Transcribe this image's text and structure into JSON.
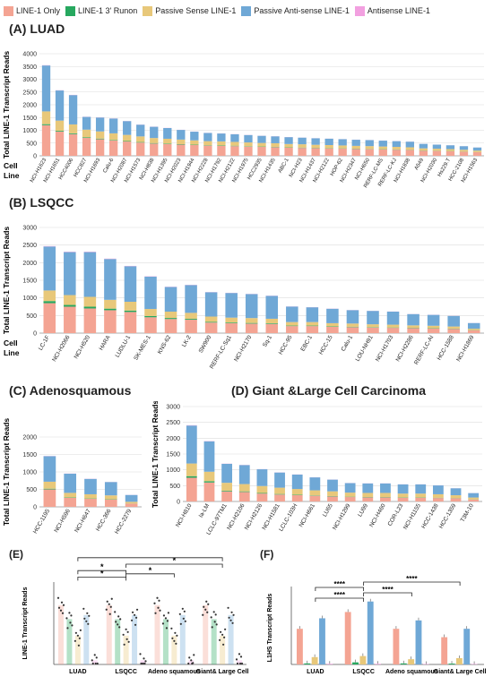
{
  "legend": [
    {
      "label": "LINE-1 Only",
      "color": "#f4a493"
    },
    {
      "label": "LINE-1 3' Runon",
      "color": "#27a85f"
    },
    {
      "label": "Passive Sense LINE-1",
      "color": "#e8c87a"
    },
    {
      "label": "Passive Anti-sense LINE-1",
      "color": "#6fa8d6"
    },
    {
      "label": "Antisense LINE-1",
      "color": "#f2a0e0"
    }
  ],
  "panels": {
    "a": {
      "title": "(A) LUAD"
    },
    "b": {
      "title": "(B) LSQCC"
    },
    "c": {
      "title": "(C) Adenosquamous"
    },
    "d": {
      "title": "(D) Giant &Large Cell Carcinoma"
    },
    "e": {
      "label": "(E)"
    },
    "f": {
      "label": "(F)"
    }
  },
  "axis": {
    "ylabel": "Total LINE-1 Transcript Reads",
    "cell": "Cell",
    "line": "Line"
  },
  "chart_data": [
    {
      "id": "A",
      "type": "bar",
      "stacked": true,
      "ylim": [
        0,
        4000
      ],
      "yticks": [
        0,
        500,
        1000,
        1500,
        2000,
        2500,
        3000,
        3500,
        4000
      ],
      "categories": [
        "NCI-H1623",
        "NCI-H1651",
        "HCC4006",
        "HCC827",
        "NCI-H1693",
        "Calu-6",
        "NCI-H2087",
        "NCI-H1573",
        "NCI-H838",
        "NCI-H1395",
        "NCI-H2023",
        "NCI-H1944",
        "NCI-H2228",
        "NCI-H1792",
        "NCI-H2122",
        "NCI-H1975",
        "HCC2935",
        "NCI-H1435",
        "ABC-1",
        "NCI-H23",
        "NCI-H1437",
        "NCI-H2122",
        "HOP-62",
        "NCI-H2347",
        "NCI-H650",
        "RERF-LC-MS",
        "RERF-LC-KJ",
        "NCI-H1838",
        "A549",
        "NCI-H2030",
        "Hs229.T",
        "HCC-2108",
        "NCI-H1563"
      ],
      "series": [
        {
          "name": "LINE-1 Only",
          "values": [
            1200,
            950,
            850,
            700,
            650,
            600,
            560,
            520,
            480,
            460,
            440,
            420,
            400,
            390,
            380,
            360,
            350,
            340,
            320,
            310,
            300,
            290,
            280,
            270,
            260,
            250,
            240,
            230,
            200,
            190,
            180,
            160,
            140
          ]
        },
        {
          "name": "LINE-1 3' Runon",
          "values": [
            40,
            30,
            30,
            25,
            25,
            20,
            20,
            20,
            18,
            18,
            16,
            16,
            15,
            15,
            15,
            14,
            14,
            13,
            12,
            12,
            12,
            11,
            11,
            10,
            10,
            10,
            10,
            9,
            8,
            8,
            8,
            7,
            6
          ]
        },
        {
          "name": "Passive Sense LINE-1",
          "values": [
            500,
            400,
            350,
            300,
            280,
            260,
            240,
            220,
            200,
            190,
            180,
            170,
            160,
            160,
            150,
            150,
            140,
            140,
            130,
            130,
            120,
            120,
            115,
            110,
            110,
            105,
            100,
            95,
            85,
            80,
            75,
            70,
            60
          ]
        },
        {
          "name": "Passive Anti-sense LINE-1",
          "values": [
            1800,
            1180,
            1150,
            500,
            545,
            580,
            540,
            460,
            440,
            420,
            380,
            340,
            320,
            310,
            300,
            290,
            280,
            270,
            270,
            260,
            255,
            250,
            245,
            240,
            235,
            230,
            225,
            220,
            175,
            160,
            150,
            140,
            120
          ]
        },
        {
          "name": "Antisense LINE-1",
          "values": [
            10,
            8,
            8,
            6,
            6,
            6,
            5,
            5,
            5,
            5,
            4,
            4,
            4,
            4,
            4,
            4,
            4,
            4,
            4,
            3,
            3,
            3,
            3,
            3,
            3,
            3,
            3,
            3,
            2,
            2,
            2,
            2,
            2
          ]
        }
      ]
    },
    {
      "id": "B",
      "type": "bar",
      "stacked": true,
      "ylim": [
        0,
        3000
      ],
      "yticks": [
        0,
        500,
        1000,
        1500,
        2000,
        2500,
        3000
      ],
      "categories": [
        "LC-1F",
        "NCI-H2066",
        "NCI-H520",
        "HARA",
        "LUDLU-1",
        "SK-MES-1",
        "KNS-62",
        "LK-2",
        "SW900",
        "RERF-LC-Sq1",
        "NCI-H2170",
        "Sq-1",
        "HCC-95",
        "EBC-1",
        "HCC-15",
        "Calu-1",
        "LOU-NH91",
        "NCI-H1703",
        "NCI-H2286",
        "RERF-LC-AI",
        "HCC-1588",
        "NCI-H1869"
      ],
      "series": [
        {
          "name": "LINE-1 Only",
          "values": [
            850,
            750,
            700,
            650,
            600,
            450,
            400,
            380,
            300,
            280,
            270,
            260,
            200,
            200,
            180,
            170,
            160,
            150,
            140,
            130,
            120,
            80
          ]
        },
        {
          "name": "LINE-1 3' Runon",
          "values": [
            60,
            50,
            50,
            45,
            40,
            35,
            30,
            25,
            20,
            20,
            18,
            18,
            14,
            14,
            12,
            12,
            11,
            10,
            10,
            9,
            8,
            6
          ]
        },
        {
          "name": "Passive Sense LINE-1",
          "values": [
            300,
            280,
            280,
            250,
            250,
            200,
            180,
            170,
            150,
            140,
            140,
            130,
            100,
            100,
            90,
            90,
            80,
            80,
            70,
            70,
            60,
            40
          ]
        },
        {
          "name": "Passive Anti-sense LINE-1",
          "values": [
            1250,
            1220,
            1270,
            1160,
            1010,
            920,
            700,
            790,
            690,
            700,
            680,
            650,
            440,
            420,
            410,
            380,
            380,
            370,
            320,
            310,
            300,
            160
          ]
        },
        {
          "name": "Antisense LINE-1",
          "values": [
            10,
            10,
            10,
            10,
            8,
            8,
            6,
            6,
            5,
            5,
            5,
            5,
            4,
            4,
            4,
            4,
            3,
            3,
            3,
            3,
            3,
            2
          ]
        }
      ]
    },
    {
      "id": "C",
      "type": "bar",
      "stacked": true,
      "ylim": [
        0,
        2000
      ],
      "yticks": [
        0,
        500,
        1000,
        1500,
        2000
      ],
      "categories": [
        "HCC-1195",
        "NCI-H596",
        "NCI-H647",
        "HCC-366",
        "HCC-2279"
      ],
      "series": [
        {
          "name": "LINE-1 Only",
          "values": [
            500,
            260,
            230,
            210,
            90
          ]
        },
        {
          "name": "LINE-1 3' Runon",
          "values": [
            20,
            10,
            10,
            8,
            4
          ]
        },
        {
          "name": "Passive Sense LINE-1",
          "values": [
            200,
            130,
            120,
            110,
            50
          ]
        },
        {
          "name": "Passive Anti-sense LINE-1",
          "values": [
            730,
            550,
            440,
            382,
            196
          ]
        },
        {
          "name": "Antisense LINE-1",
          "values": [
            5,
            4,
            4,
            3,
            2
          ]
        }
      ]
    },
    {
      "id": "D",
      "type": "bar",
      "stacked": true,
      "ylim": [
        0,
        3000
      ],
      "yticks": [
        0,
        500,
        1000,
        1500,
        2000,
        2500,
        3000
      ],
      "categories": [
        "NCI-H810",
        "Ia-LM",
        "LCLC-97TM1",
        "NCI-H2106",
        "NCI-H2126",
        "NCI-H1581",
        "LCLC-103H",
        "NCI-H661",
        "LU65",
        "NCI-H1299",
        "LU99",
        "NCI-H460",
        "COR-L23",
        "NCI-H1155",
        "HCC-1438",
        "HCC-1359",
        "T3M-10"
      ],
      "series": [
        {
          "name": "LINE-1 Only",
          "values": [
            750,
            600,
            320,
            300,
            250,
            220,
            200,
            180,
            160,
            140,
            130,
            130,
            120,
            120,
            110,
            100,
            60
          ]
        },
        {
          "name": "LINE-1 3' Runon",
          "values": [
            50,
            40,
            20,
            20,
            18,
            16,
            14,
            12,
            11,
            10,
            10,
            10,
            9,
            9,
            8,
            7,
            5
          ]
        },
        {
          "name": "Passive Sense LINE-1",
          "values": [
            400,
            300,
            250,
            230,
            220,
            200,
            180,
            160,
            150,
            130,
            130,
            130,
            120,
            120,
            110,
            90,
            60
          ]
        },
        {
          "name": "Passive Anti-sense LINE-1",
          "values": [
            1200,
            960,
            600,
            600,
            530,
            480,
            456,
            410,
            370,
            300,
            300,
            300,
            290,
            290,
            280,
            220,
            140
          ]
        },
        {
          "name": "Antisense LINE-1",
          "values": [
            10,
            8,
            5,
            5,
            4,
            4,
            4,
            4,
            3,
            3,
            3,
            3,
            3,
            3,
            3,
            2,
            2
          ]
        }
      ]
    },
    {
      "id": "E",
      "type": "scatter",
      "ylabel": "LINE-1 Transcript Reads",
      "groups": [
        "LUAD",
        "LSQCC",
        "Adeno squamous",
        "Giant& Large Cell"
      ],
      "significance": [
        "*",
        "*",
        "*",
        "*",
        "*"
      ]
    },
    {
      "id": "F",
      "type": "bar",
      "ylabel": "L1HS Transcript Reads",
      "groups": [
        "LUAD",
        "LSQCC",
        "Adeno squamous",
        "Giant& Large Cell"
      ],
      "series": [
        {
          "name": "LINE-1 Only",
          "values": [
            0.17,
            0.25,
            0.17,
            0.13
          ]
        },
        {
          "name": "LINE-1 3' Runon",
          "values": [
            0.005,
            0.01,
            0.005,
            0.004
          ]
        },
        {
          "name": "Passive Sense LINE-1",
          "values": [
            0.035,
            0.04,
            0.025,
            0.03
          ]
        },
        {
          "name": "Passive Anti-sense LINE-1",
          "values": [
            0.22,
            0.3,
            0.21,
            0.17
          ]
        },
        {
          "name": "Antisense LINE-1",
          "values": [
            0.003,
            0.003,
            0.002,
            0.002
          ]
        }
      ],
      "ylim": [
        0,
        0.35
      ],
      "significance": [
        "****",
        "****",
        "****",
        "****"
      ]
    }
  ]
}
